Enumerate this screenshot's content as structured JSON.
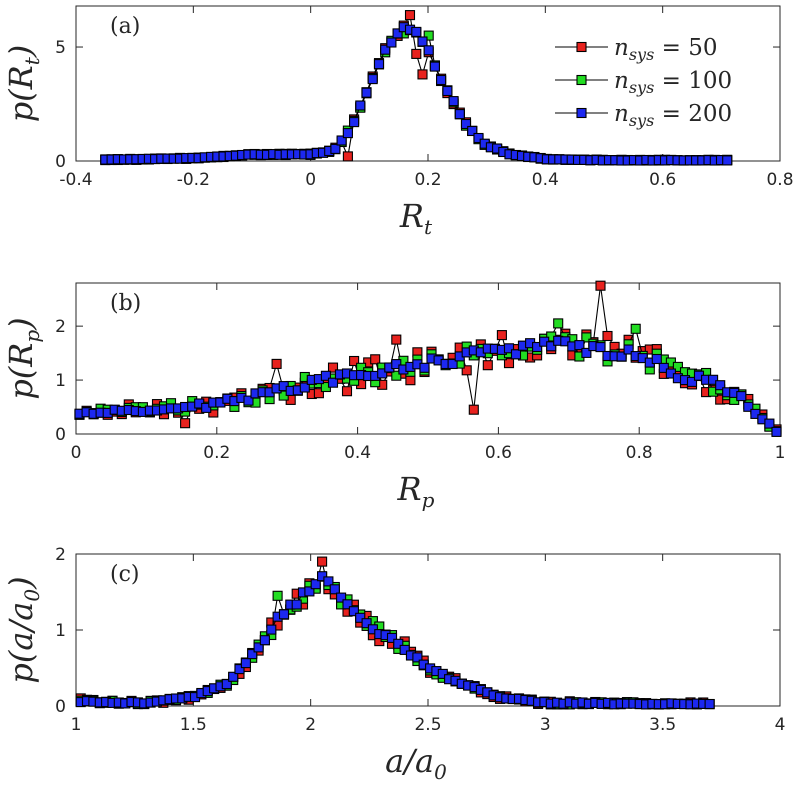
{
  "legend": [
    {
      "name_var": "n",
      "name_sub": "sys",
      "eq": "=",
      "value": "50",
      "color": "#e8221e"
    },
    {
      "name_var": "n",
      "name_sub": "sys",
      "eq": "=",
      "value": "100",
      "color": "#22dd22"
    },
    {
      "name_var": "n",
      "name_sub": "sys",
      "eq": "=",
      "value": "200",
      "color": "#1c28f0"
    }
  ],
  "chart_data": [
    {
      "type": "line",
      "panel_label": "(a)",
      "xlabel_var": "R",
      "xlabel_sub": "t",
      "ylabel_text": "p(R",
      "ylabel_sub": "t",
      "ylabel_close": ")",
      "xlim": [
        -0.4,
        0.8
      ],
      "ylim": [
        0,
        6.8
      ],
      "xticks": [
        -0.4,
        -0.2,
        0,
        0.2,
        0.4,
        0.6,
        0.8
      ],
      "xtick_labels": [
        "-0.4",
        "-0.2",
        "0",
        "0.2",
        "0.4",
        "0.6",
        "0.8"
      ],
      "yticks": [
        0,
        5
      ],
      "ytick_labels": [
        "0",
        "5"
      ],
      "legend_position": "top-right",
      "x_range": [
        -0.35,
        0.71
      ],
      "n_points": 101,
      "profile": [
        [
          -0.35,
          0.05
        ],
        [
          -0.2,
          0.12
        ],
        [
          -0.1,
          0.28
        ],
        [
          0,
          0.3
        ],
        [
          0.04,
          0.45
        ],
        [
          0.07,
          1.5
        ],
        [
          0.1,
          3.3
        ],
        [
          0.13,
          5.0
        ],
        [
          0.16,
          5.9
        ],
        [
          0.18,
          5.7
        ],
        [
          0.2,
          4.9
        ],
        [
          0.22,
          3.6
        ],
        [
          0.25,
          2.3
        ],
        [
          0.27,
          1.4
        ],
        [
          0.3,
          0.7
        ],
        [
          0.34,
          0.3
        ],
        [
          0.4,
          0.08
        ],
        [
          0.5,
          0.03
        ],
        [
          0.71,
          0.03
        ]
      ],
      "series": [
        {
          "name": "n_sys = 50",
          "noise": 0.12,
          "seed": 3,
          "overrides": [
            [
              0.175,
              6.8
            ],
            [
              0.165,
              6.4
            ],
            [
              0.18,
              4.7
            ],
            [
              0.19,
              3.8
            ],
            [
              0.06,
              0.2
            ]
          ]
        },
        {
          "name": "n_sys = 100",
          "noise": 0.09,
          "seed": 11,
          "overrides": [
            [
              0.155,
              5.6
            ],
            [
              0.2,
              5.5
            ]
          ]
        },
        {
          "name": "n_sys = 200",
          "noise": 0.06,
          "seed": 23,
          "overrides": []
        }
      ]
    },
    {
      "type": "line",
      "panel_label": "(b)",
      "xlabel_var": "R",
      "xlabel_sub": "p",
      "ylabel_text": "p(R",
      "ylabel_sub": "p",
      "ylabel_close": ")",
      "xlim": [
        0,
        1
      ],
      "ylim": [
        0,
        2.8
      ],
      "xticks": [
        0,
        0.2,
        0.4,
        0.6,
        0.8,
        1
      ],
      "xtick_labels": [
        "0",
        "0.2",
        "0.4",
        "0.6",
        "0.8",
        "1"
      ],
      "yticks": [
        0,
        1,
        2
      ],
      "ytick_labels": [
        "0",
        "1",
        "2"
      ],
      "x_range": [
        0.005,
        0.995
      ],
      "n_points": 100,
      "profile": [
        [
          0,
          0.4
        ],
        [
          0.1,
          0.45
        ],
        [
          0.2,
          0.55
        ],
        [
          0.3,
          0.85
        ],
        [
          0.4,
          1.1
        ],
        [
          0.5,
          1.3
        ],
        [
          0.6,
          1.55
        ],
        [
          0.7,
          1.65
        ],
        [
          0.8,
          1.45
        ],
        [
          0.85,
          1.15
        ],
        [
          0.9,
          0.95
        ],
        [
          0.94,
          0.7
        ],
        [
          0.97,
          0.35
        ],
        [
          0.995,
          0.05
        ]
      ],
      "series": [
        {
          "name": "n_sys = 50",
          "noise": 0.28,
          "seed": 5,
          "overrides": [
            [
              0.745,
              2.75
            ],
            [
              0.28,
              1.3
            ],
            [
              0.455,
              1.75
            ],
            [
              0.565,
              0.45
            ],
            [
              0.16,
              0.2
            ]
          ]
        },
        {
          "name": "n_sys = 100",
          "noise": 0.2,
          "seed": 17,
          "overrides": [
            [
              0.69,
              2.05
            ],
            [
              0.79,
              1.95
            ]
          ]
        },
        {
          "name": "n_sys = 200",
          "noise": 0.1,
          "seed": 29,
          "overrides": []
        }
      ]
    },
    {
      "type": "line",
      "panel_label": "(c)",
      "xlabel_var": "a/a",
      "xlabel_sub": "0",
      "ylabel_text": "p(a/a",
      "ylabel_sub": "0",
      "ylabel_close": ")",
      "xlim": [
        1,
        4
      ],
      "ylim": [
        0,
        2
      ],
      "xticks": [
        1,
        1.5,
        2,
        2.5,
        3,
        3.5,
        4
      ],
      "xtick_labels": [
        "1",
        "1.5",
        "2",
        "2.5",
        "3",
        "3.5",
        "4"
      ],
      "yticks": [
        0,
        1,
        2
      ],
      "ytick_labels": [
        "0",
        "1",
        "2"
      ],
      "x_range": [
        1.02,
        3.7
      ],
      "n_points": 100,
      "profile": [
        [
          1.02,
          0.06
        ],
        [
          1.3,
          0.04
        ],
        [
          1.5,
          0.12
        ],
        [
          1.65,
          0.3
        ],
        [
          1.75,
          0.65
        ],
        [
          1.85,
          1.1
        ],
        [
          1.95,
          1.4
        ],
        [
          2.05,
          1.7
        ],
        [
          2.12,
          1.45
        ],
        [
          2.2,
          1.2
        ],
        [
          2.3,
          0.95
        ],
        [
          2.4,
          0.75
        ],
        [
          2.5,
          0.5
        ],
        [
          2.6,
          0.35
        ],
        [
          2.8,
          0.12
        ],
        [
          3.0,
          0.04
        ],
        [
          3.7,
          0.02
        ]
      ],
      "series": [
        {
          "name": "n_sys = 50",
          "noise": 0.12,
          "seed": 7,
          "overrides": [
            [
              2.06,
              1.9
            ],
            [
              1.02,
              0.1
            ],
            [
              2.4,
              0.85
            ]
          ]
        },
        {
          "name": "n_sys = 100",
          "noise": 0.09,
          "seed": 13,
          "overrides": [
            [
              1.87,
              1.45
            ]
          ]
        },
        {
          "name": "n_sys = 200",
          "noise": 0.05,
          "seed": 31,
          "overrides": []
        }
      ]
    }
  ]
}
